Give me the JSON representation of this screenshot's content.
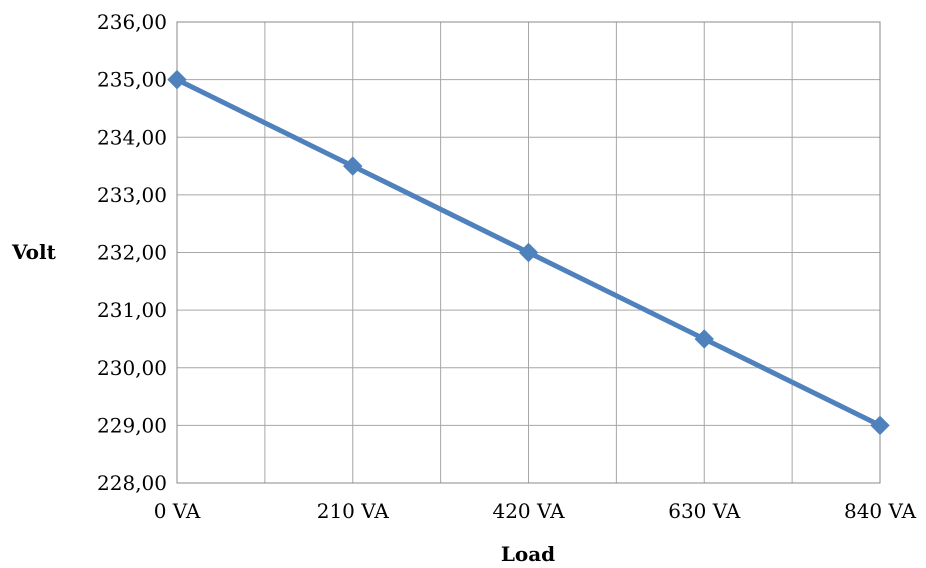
{
  "chart_data": {
    "type": "line",
    "x": [
      "0 VA",
      "210 VA",
      "420 VA",
      "630 VA",
      "840 VA"
    ],
    "series": [
      {
        "values": [
          235.0,
          233.5,
          232.0,
          230.5,
          229.0
        ]
      }
    ],
    "xlabel": "Load",
    "ylabel": "Volt",
    "ylim": [
      228,
      236
    ],
    "yticks": [
      "228,00",
      "229,00",
      "230,00",
      "231,00",
      "232,00",
      "233,00",
      "234,00",
      "235,00",
      "236,00"
    ],
    "grid": true,
    "legend": "none",
    "line_color": "#4f81bd",
    "marker": "diamond"
  }
}
